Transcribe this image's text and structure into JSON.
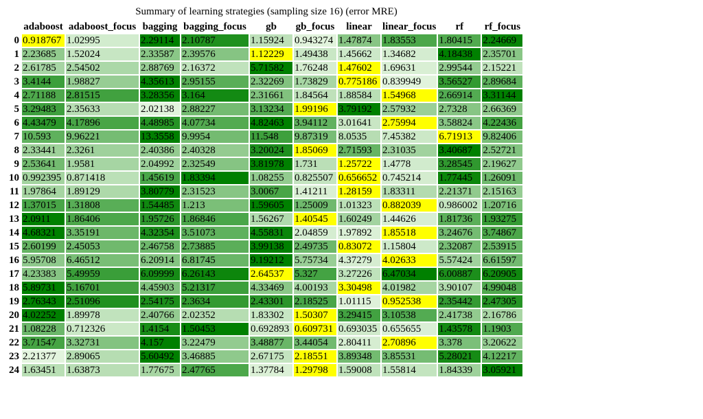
{
  "caption": "Summary of learning strategies (sampling size 16) (error MRE)",
  "columns": [
    "adaboost",
    "adaboost_focus",
    "bagging",
    "bagging_focus",
    "gb",
    "gb_focus",
    "linear",
    "linear_focus",
    "rf",
    "rf_focus"
  ],
  "colors": {
    "min": "#ffff00",
    "dark": "#008000",
    "light": "#e5f5e0"
  },
  "rows": [
    [
      "0.918767",
      "1.02995",
      "2.29114",
      "2.10787",
      "1.15924",
      "0.943274",
      "1.47874",
      "1.83553",
      "1.80415",
      "2.24669"
    ],
    [
      "2.23685",
      "1.52024",
      "2.33587",
      "2.39576",
      "1.12229",
      "1.49438",
      "1.45662",
      "1.34682",
      "4.18438",
      "2.35701"
    ],
    [
      "2.61785",
      "2.54502",
      "2.88769",
      "2.16372",
      "5.71582",
      "1.76248",
      "1.47602",
      "1.69631",
      "2.99544",
      "2.15221"
    ],
    [
      "3.4144",
      "1.98827",
      "4.35613",
      "2.95155",
      "2.32269",
      "1.73829",
      "0.775186",
      "0.839949",
      "3.56527",
      "2.89684"
    ],
    [
      "2.71188",
      "2.81515",
      "3.28356",
      "3.164",
      "2.31661",
      "1.84564",
      "1.88584",
      "1.54968",
      "2.66914",
      "3.31144"
    ],
    [
      "3.29483",
      "2.35633",
      "2.02138",
      "2.88227",
      "3.13234",
      "1.99196",
      "3.79192",
      "2.57932",
      "2.7328",
      "2.66369"
    ],
    [
      "4.43479",
      "4.17896",
      "4.48985",
      "4.07734",
      "4.82463",
      "3.94112",
      "3.01641",
      "2.75994",
      "3.58824",
      "4.22436"
    ],
    [
      "10.593",
      "9.96221",
      "13.3558",
      "9.9954",
      "11.548",
      "9.87319",
      "8.0535",
      "7.45382",
      "6.71913",
      "9.82406"
    ],
    [
      "2.33441",
      "2.3261",
      "2.40386",
      "2.40328",
      "3.20024",
      "1.85069",
      "2.71593",
      "2.31035",
      "3.40687",
      "2.52721"
    ],
    [
      "2.53641",
      "1.9581",
      "2.04992",
      "2.32549",
      "3.81978",
      "1.731",
      "1.25722",
      "1.4778",
      "3.28545",
      "2.19627"
    ],
    [
      "0.992395",
      "0.871418",
      "1.45619",
      "1.83394",
      "1.08255",
      "0.825507",
      "0.656652",
      "0.745214",
      "1.77445",
      "1.26091"
    ],
    [
      "1.97864",
      "1.89129",
      "3.80779",
      "2.31523",
      "3.0067",
      "1.41211",
      "1.28159",
      "1.83311",
      "2.21371",
      "2.15163"
    ],
    [
      "1.37015",
      "1.31808",
      "1.54485",
      "1.213",
      "1.59605",
      "1.25009",
      "1.01323",
      "0.882039",
      "0.986002",
      "1.20716"
    ],
    [
      "2.0911",
      "1.86406",
      "1.95726",
      "1.86846",
      "1.56267",
      "1.40545",
      "1.60249",
      "1.44626",
      "1.81736",
      "1.93275"
    ],
    [
      "4.68321",
      "3.35191",
      "4.32354",
      "3.51073",
      "4.55831",
      "2.04859",
      "1.97892",
      "1.85518",
      "3.24676",
      "3.74867"
    ],
    [
      "2.60199",
      "2.45053",
      "2.46758",
      "2.73885",
      "3.99138",
      "2.49735",
      "0.83072",
      "1.15804",
      "2.32087",
      "2.53915"
    ],
    [
      "5.95708",
      "6.46512",
      "6.20914",
      "6.81745",
      "9.19212",
      "5.75734",
      "4.37279",
      "4.02633",
      "5.57424",
      "6.61597"
    ],
    [
      "4.23383",
      "5.49959",
      "6.09999",
      "6.26143",
      "2.64537",
      "5.327",
      "3.27226",
      "6.47034",
      "6.00887",
      "6.20905"
    ],
    [
      "5.89731",
      "5.16701",
      "4.45903",
      "5.21317",
      "4.33469",
      "4.00193",
      "3.30498",
      "4.01982",
      "3.90107",
      "4.99048"
    ],
    [
      "2.76343",
      "2.51096",
      "2.54175",
      "2.3634",
      "2.43301",
      "2.18525",
      "1.01115",
      "0.952538",
      "2.35442",
      "2.47305"
    ],
    [
      "4.02252",
      "1.89978",
      "2.40766",
      "2.02352",
      "1.83302",
      "1.50307",
      "3.29415",
      "3.10538",
      "2.41738",
      "2.16786"
    ],
    [
      "1.08228",
      "0.712326",
      "1.4154",
      "1.50453",
      "0.692893",
      "0.609731",
      "0.693035",
      "0.655655",
      "1.43578",
      "1.1903"
    ],
    [
      "3.71547",
      "3.32731",
      "4.157",
      "3.22479",
      "3.48877",
      "3.44054",
      "2.80411",
      "2.70896",
      "3.378",
      "3.20622"
    ],
    [
      "2.21377",
      "2.89065",
      "5.60492",
      "3.46885",
      "2.67175",
      "2.18551",
      "3.89348",
      "3.85531",
      "5.28021",
      "4.12217"
    ],
    [
      "1.63451",
      "1.63873",
      "1.77675",
      "2.47765",
      "1.37784",
      "1.29798",
      "1.59008",
      "1.55814",
      "1.84339",
      "3.05921"
    ]
  ]
}
